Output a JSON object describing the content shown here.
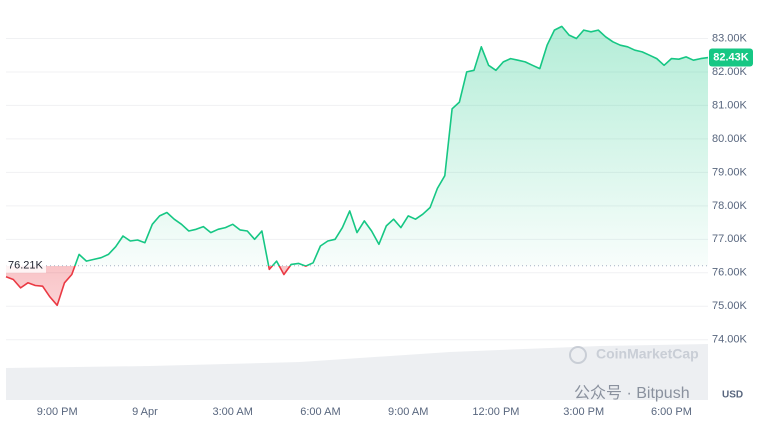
{
  "chart_data": {
    "type": "line",
    "x": [
      -4.75,
      -4.5,
      -4.25,
      -4,
      -3.75,
      -3.5,
      -3.25,
      -3,
      -2.75,
      -2.5,
      -2.25,
      -2,
      -1.75,
      -1.5,
      -1.25,
      -1,
      -0.75,
      -0.5,
      -0.25,
      0,
      0.25,
      0.5,
      0.75,
      1,
      1.25,
      1.5,
      1.75,
      2,
      2.25,
      2.5,
      2.75,
      3,
      3.25,
      3.5,
      3.75,
      4,
      4.25,
      4.5,
      4.75,
      5,
      5.25,
      5.5,
      5.75,
      6,
      6.25,
      6.5,
      6.75,
      7,
      7.25,
      7.5,
      7.75,
      8,
      8.25,
      8.5,
      8.75,
      9,
      9.25,
      9.5,
      9.75,
      10,
      10.25,
      10.5,
      10.75,
      11,
      11.25,
      11.5,
      11.75,
      12,
      12.25,
      12.5,
      12.75,
      13,
      13.25,
      13.5,
      13.75,
      14,
      14.25,
      14.5,
      14.75,
      15,
      15.25,
      15.5,
      15.75,
      16,
      16.25,
      16.5,
      16.75,
      17,
      17.25,
      17.5,
      17.75,
      18,
      18.25,
      18.5,
      18.75,
      19,
      19.25
    ],
    "series": [
      {
        "color": "#16c784",
        "below_color": "#ea3943",
        "values": [
          75880,
          75800,
          75550,
          75700,
          75620,
          75600,
          75280,
          75030,
          75700,
          75950,
          76550,
          76350,
          76400,
          76450,
          76550,
          76780,
          77100,
          76950,
          76980,
          76900,
          77450,
          77700,
          77800,
          77600,
          77450,
          77250,
          77300,
          77380,
          77200,
          77300,
          77350,
          77450,
          77280,
          77250,
          77000,
          77250,
          76100,
          76350,
          75950,
          76250,
          76280,
          76200,
          76300,
          76800,
          76950,
          77000,
          77350,
          77850,
          77200,
          77550,
          77250,
          76850,
          77400,
          77600,
          77350,
          77700,
          77600,
          77750,
          77950,
          78520,
          78900,
          80900,
          81100,
          82000,
          82050,
          82750,
          82200,
          82050,
          82300,
          82400,
          82350,
          82300,
          82200,
          82100,
          82800,
          83250,
          83360,
          83100,
          83000,
          83250,
          83200,
          83250,
          83050,
          82900,
          82800,
          82750,
          82650,
          82600,
          82500,
          82400,
          82200,
          82400,
          82380,
          82450,
          82350,
          82400,
          82430
        ]
      }
    ],
    "xlim": [
      -4.75,
      19.25
    ],
    "xticks": [
      {
        "value": -3,
        "label": "9:00 PM"
      },
      {
        "value": 0,
        "label": "9 Apr"
      },
      {
        "value": 3,
        "label": "3:00 AM"
      },
      {
        "value": 6,
        "label": "6:00 AM"
      },
      {
        "value": 9,
        "label": "9:00 AM"
      },
      {
        "value": 12,
        "label": "12:00 PM"
      },
      {
        "value": 15,
        "label": "3:00 PM"
      },
      {
        "value": 18,
        "label": "6:00 PM"
      }
    ],
    "ylim": [
      72200,
      84000
    ],
    "yticks": [
      {
        "value": 74000,
        "label": "74.00K"
      },
      {
        "value": 75000,
        "label": "75.00K"
      },
      {
        "value": 76000,
        "label": "76.00K"
      },
      {
        "value": 77000,
        "label": "77.00K"
      },
      {
        "value": 78000,
        "label": "78.00K"
      },
      {
        "value": 79000,
        "label": "79.00K"
      },
      {
        "value": 80000,
        "label": "80.00K"
      },
      {
        "value": 81000,
        "label": "81.00K"
      },
      {
        "value": 82000,
        "label": "82.00K"
      },
      {
        "value": 83000,
        "label": "83.00K"
      }
    ],
    "grid": true,
    "reference": {
      "value": 76210,
      "label": "76.21K"
    },
    "current": {
      "value": 82430,
      "label": "82.43K"
    },
    "currency": "USD",
    "watermark": "CoinMarketCap",
    "source_note": "公众号 · Bitpush"
  }
}
